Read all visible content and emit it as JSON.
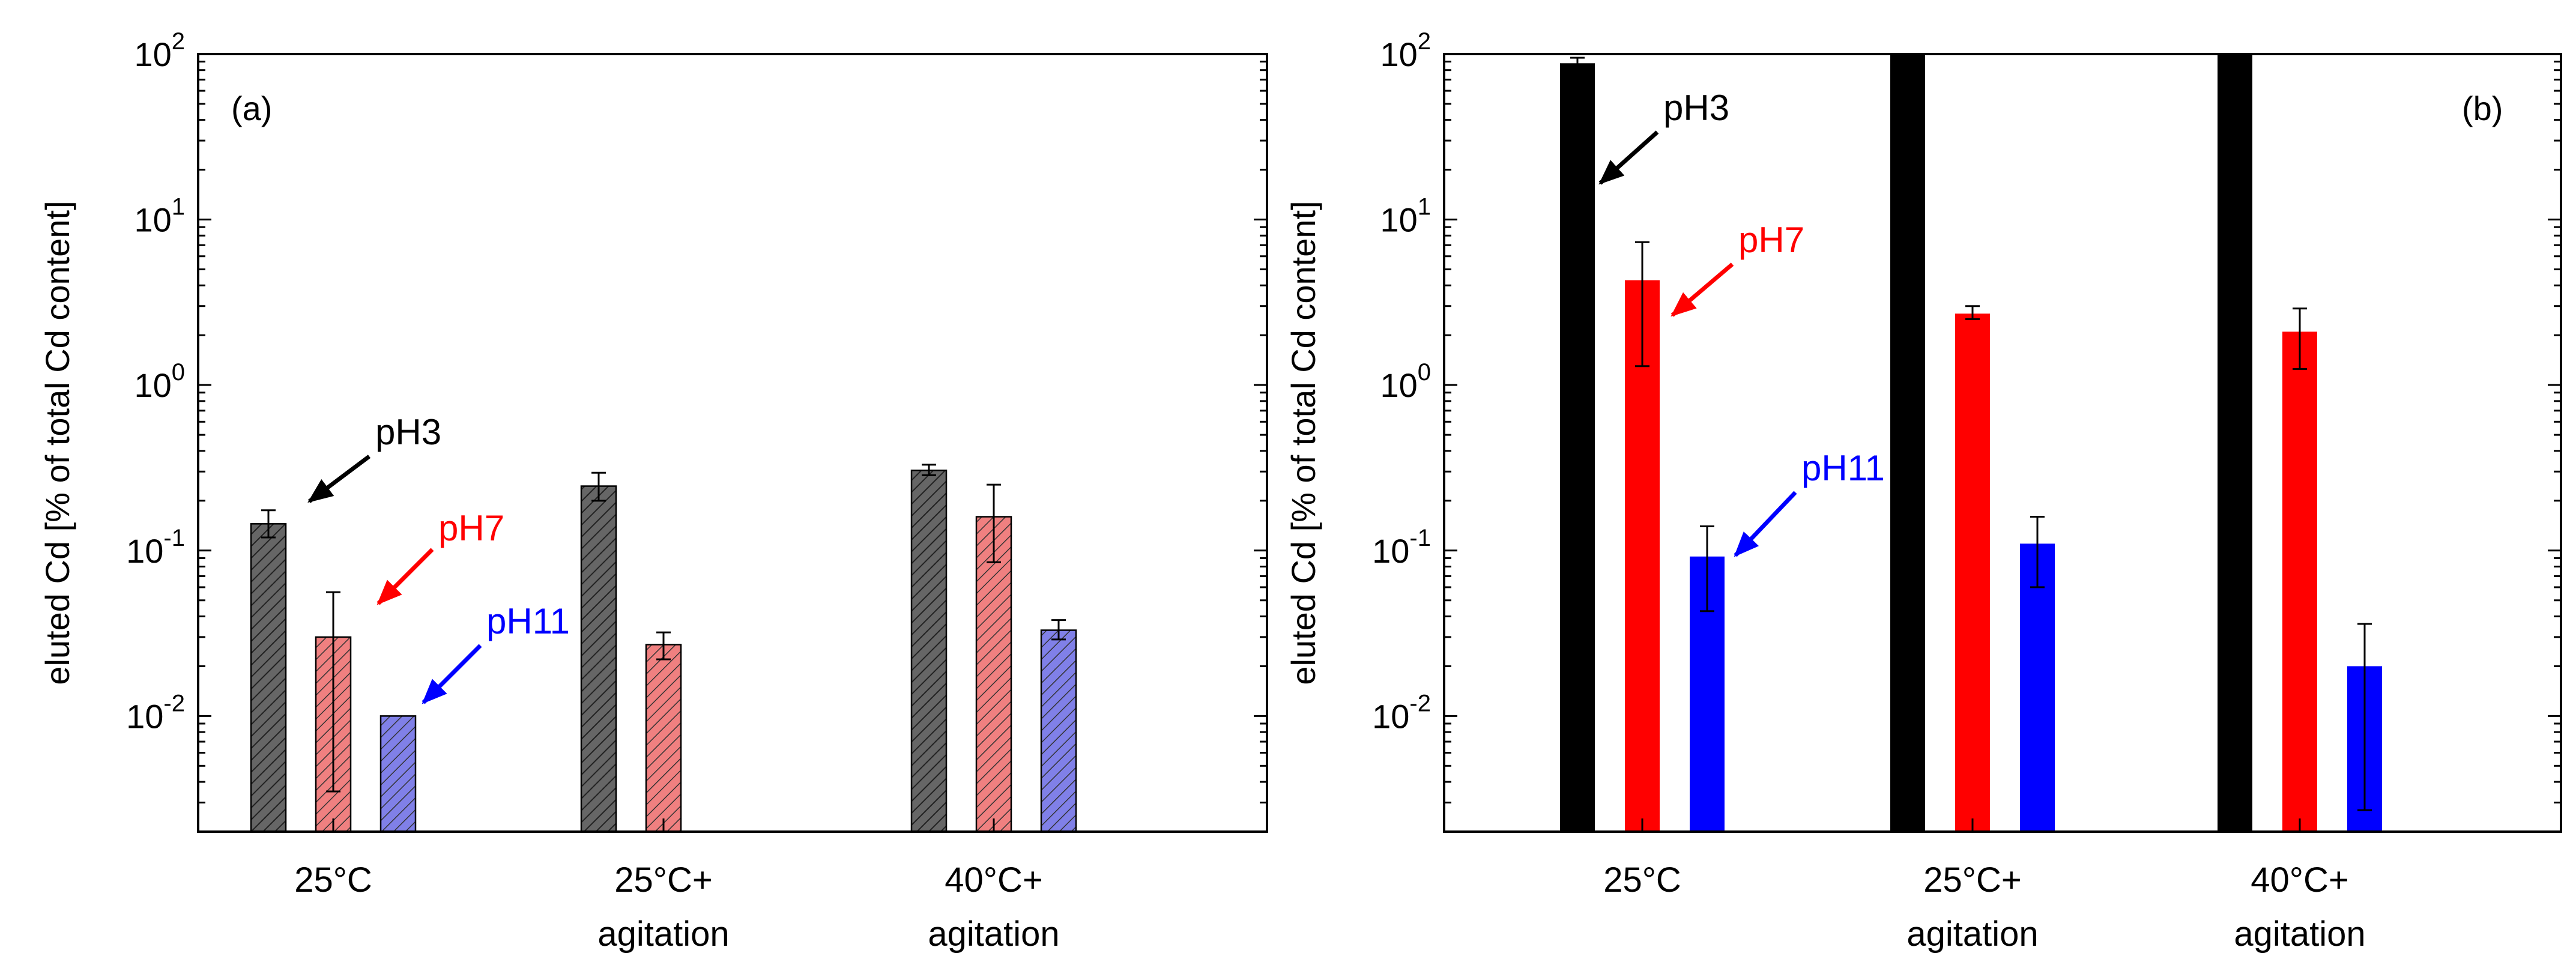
{
  "colors": {
    "pH3_hatched": "#666666",
    "pH7_hatched": "#f08080",
    "pH11_hatched": "#8080e8",
    "pH3_solid": "#000000",
    "pH7_solid": "#ff0000",
    "pH11_solid": "#0000ff"
  },
  "chart_data": [
    {
      "type": "bar",
      "panel_label": "(a)",
      "ylabel": "eluted Cd [% of total Cd content]",
      "yscale": "log",
      "ylim": [
        0.002,
        100
      ],
      "ytick_labels": [
        {
          "value": 0.01,
          "base": "10",
          "exp": "-2"
        },
        {
          "value": 0.1,
          "base": "10",
          "exp": "-1"
        },
        {
          "value": 1,
          "base": "10",
          "exp": "0"
        },
        {
          "value": 10,
          "base": "10",
          "exp": "1"
        },
        {
          "value": 100,
          "base": "10",
          "exp": "2"
        }
      ],
      "categories": [
        {
          "line1": "25°C",
          "line2": ""
        },
        {
          "line1": "25°C+",
          "line2": "agitation"
        },
        {
          "line1": "40°C+",
          "line2": "agitation"
        }
      ],
      "style": "hatched",
      "series": [
        {
          "name": "pH3",
          "color_key": "pH3_hatched",
          "values": [
            0.145,
            0.245,
            0.305
          ],
          "err_low": [
            0.12,
            0.2,
            0.285
          ],
          "err_high": [
            0.175,
            0.295,
            0.33
          ]
        },
        {
          "name": "pH7",
          "color_key": "pH7_hatched",
          "values": [
            0.03,
            0.027,
            0.16
          ],
          "err_low": [
            0.0035,
            0.022,
            0.085
          ],
          "err_high": [
            0.056,
            0.032,
            0.25
          ]
        },
        {
          "name": "pH11",
          "color_key": "pH11_hatched",
          "values": [
            0.01,
            null,
            0.033
          ],
          "err_low": [
            null,
            null,
            0.029
          ],
          "err_high": [
            null,
            null,
            0.038
          ]
        }
      ],
      "annotations": [
        {
          "text": "pH3",
          "color_key": "pH3_solid",
          "series": 0,
          "category": 0
        },
        {
          "text": "pH7",
          "color_key": "pH7_solid",
          "series": 1,
          "category": 0
        },
        {
          "text": "pH11",
          "color_key": "pH11_solid",
          "series": 2,
          "category": 0
        }
      ]
    },
    {
      "type": "bar",
      "panel_label": "(b)",
      "ylabel": "eluted Cd [% of total Cd content]",
      "yscale": "log",
      "ylim": [
        0.002,
        100
      ],
      "ytick_labels": [
        {
          "value": 0.01,
          "base": "10",
          "exp": "-2"
        },
        {
          "value": 0.1,
          "base": "10",
          "exp": "-1"
        },
        {
          "value": 1,
          "base": "10",
          "exp": "0"
        },
        {
          "value": 10,
          "base": "10",
          "exp": "1"
        },
        {
          "value": 100,
          "base": "10",
          "exp": "2"
        }
      ],
      "categories": [
        {
          "line1": "25°C",
          "line2": ""
        },
        {
          "line1": "25°C+",
          "line2": "agitation"
        },
        {
          "line1": "40°C+",
          "line2": "agitation"
        }
      ],
      "style": "solid",
      "series": [
        {
          "name": "pH3",
          "color_key": "pH3_solid",
          "values": [
            88,
            100,
            100
          ],
          "err_low": [
            84,
            null,
            null
          ],
          "err_high": [
            95,
            null,
            null
          ]
        },
        {
          "name": "pH7",
          "color_key": "pH7_solid",
          "values": [
            4.3,
            2.7,
            2.1
          ],
          "err_low": [
            1.3,
            2.5,
            1.25
          ],
          "err_high": [
            7.3,
            3.0,
            2.9
          ]
        },
        {
          "name": "pH11",
          "color_key": "pH11_solid",
          "values": [
            0.092,
            0.11,
            0.02
          ],
          "err_low": [
            0.043,
            0.06,
            0.0027
          ],
          "err_high": [
            0.14,
            0.16,
            0.036
          ]
        }
      ],
      "annotations": [
        {
          "text": "pH3",
          "color_key": "pH3_solid",
          "series": 0,
          "category": 0
        },
        {
          "text": "pH7",
          "color_key": "pH7_solid",
          "series": 1,
          "category": 0
        },
        {
          "text": "pH11",
          "color_key": "pH11_solid",
          "series": 2,
          "category": 0
        }
      ]
    }
  ]
}
